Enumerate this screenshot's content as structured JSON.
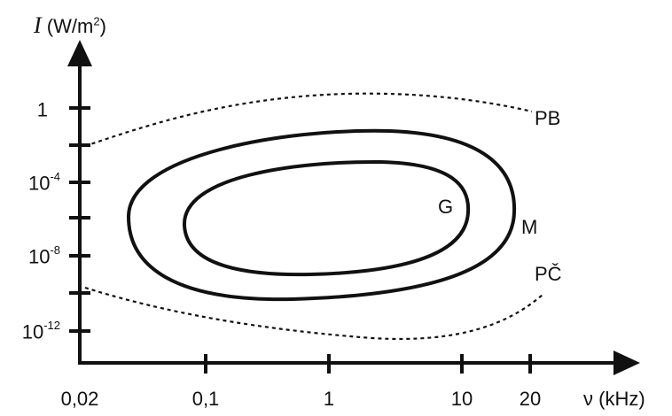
{
  "axes": {
    "y_title_symbol": "I",
    "y_title_unit_pre": " (W/m",
    "y_title_unit_exp": "2",
    "y_title_unit_post": ")",
    "x_title": "ν (kHz)"
  },
  "x_ticks": [
    "0,02",
    "0,1",
    "1",
    "10",
    "20"
  ],
  "y_ticks": [
    {
      "base": "1",
      "exp": ""
    },
    {
      "base": "10",
      "exp": "-4"
    },
    {
      "base": "10",
      "exp": "-8"
    },
    {
      "base": "10",
      "exp": "-12"
    }
  ],
  "curves": {
    "upper_threshold_label": "PB",
    "outer_region_label": "M",
    "inner_region_label": "G",
    "lower_threshold_label": "PČ"
  }
}
